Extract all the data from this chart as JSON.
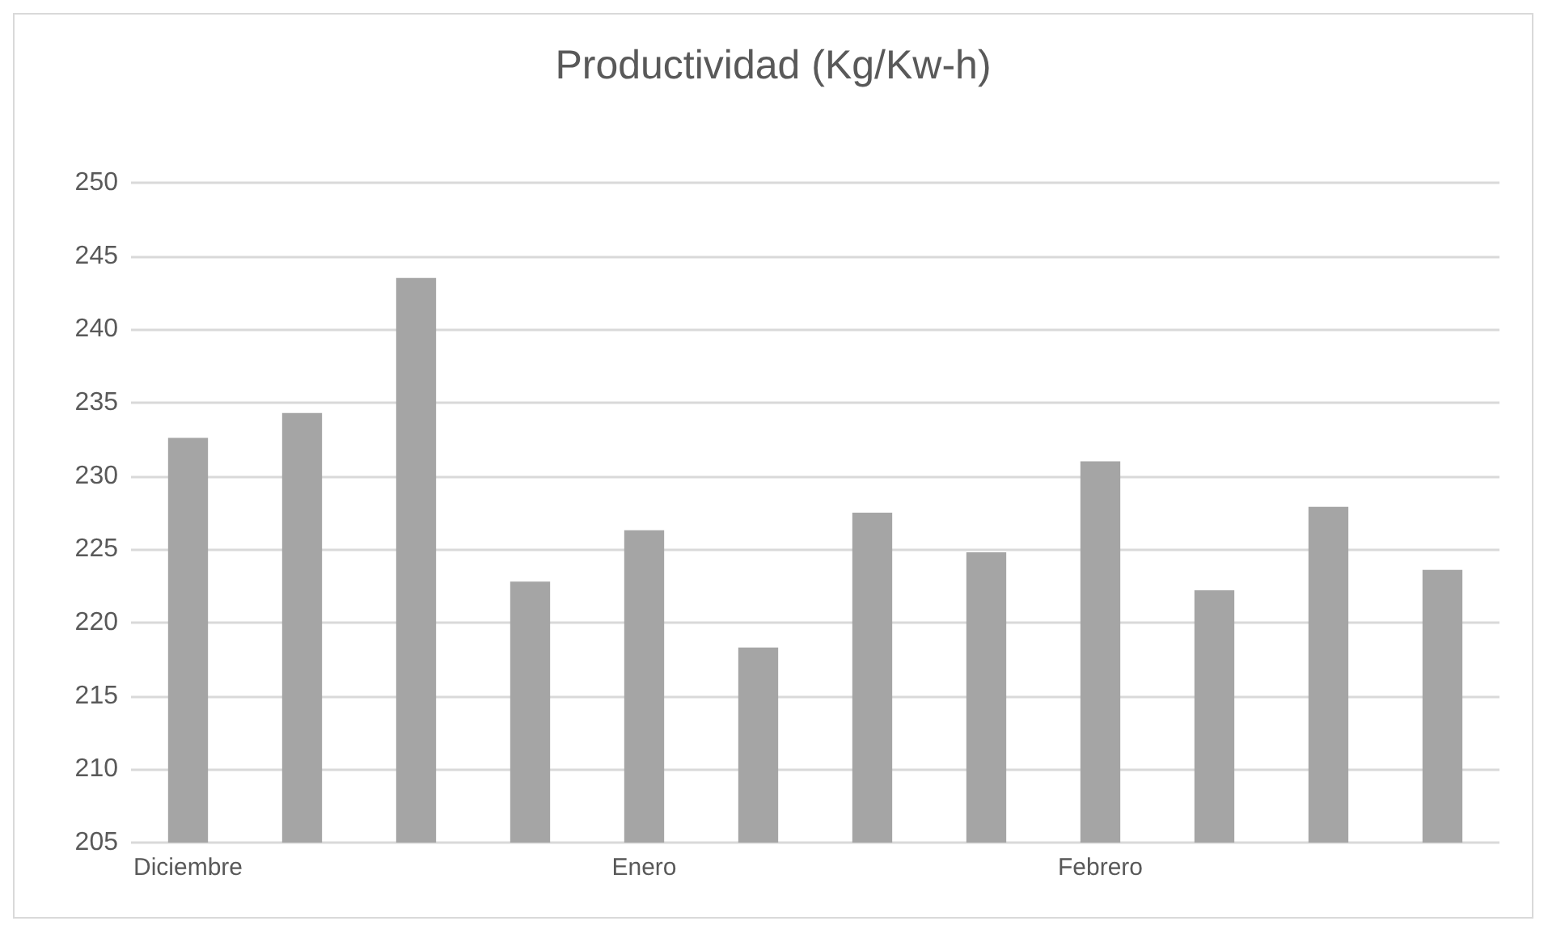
{
  "chart_data": {
    "type": "bar",
    "title": "Productividad (Kg/Kw-h)",
    "categories": [
      "Diciembre",
      null,
      null,
      null,
      "Enero",
      null,
      null,
      null,
      "Febrero",
      null,
      null,
      null
    ],
    "values": [
      232.6,
      234.3,
      243.5,
      222.8,
      226.3,
      218.3,
      227.5,
      224.8,
      231.0,
      222.2,
      227.9,
      223.6
    ],
    "color": "#a5a5a5",
    "ylim": [
      205,
      250
    ],
    "yticks": [
      205,
      210,
      215,
      220,
      225,
      230,
      235,
      240,
      245,
      250
    ],
    "grid": "y"
  }
}
